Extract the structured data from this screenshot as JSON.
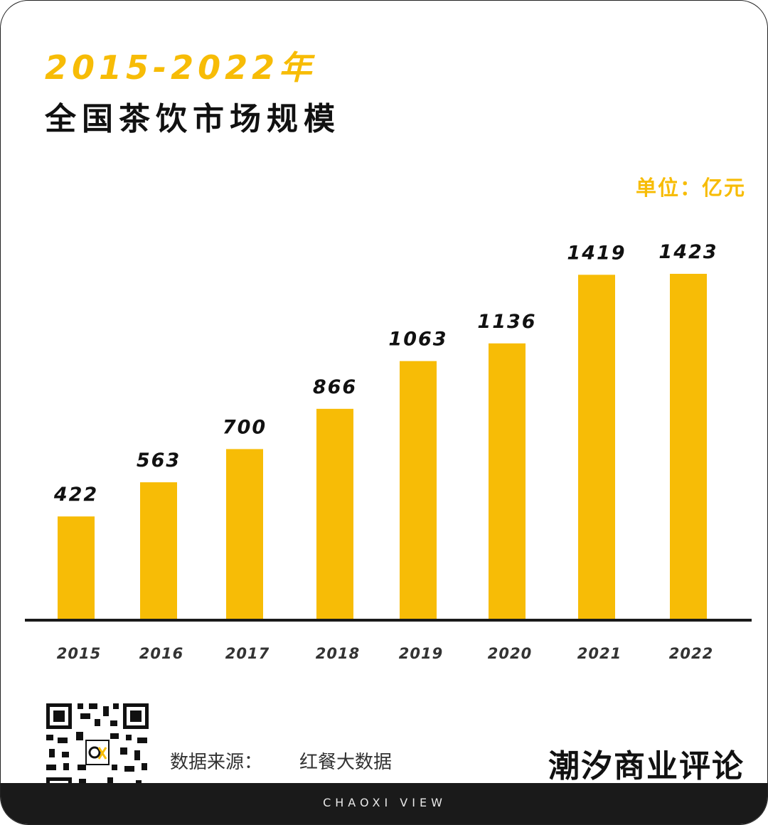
{
  "title": {
    "line1": "2015-2022年",
    "line2": "全国茶饮市场规模"
  },
  "unit_label": "单位：亿元",
  "colors": {
    "bar": "#f7bc06",
    "accent": "#f7bc06",
    "text": "#111111",
    "footer": "#1a1a1a"
  },
  "chart_data": {
    "type": "bar",
    "title": "2015-2022年 全国茶饮市场规模",
    "xlabel": "",
    "ylabel": "",
    "unit": "亿元",
    "categories": [
      "2015",
      "2016",
      "2017",
      "2018",
      "2019",
      "2020",
      "2021",
      "2022"
    ],
    "values": [
      422,
      563,
      700,
      866,
      1063,
      1136,
      1419,
      1423
    ],
    "ylim": [
      0,
      1423
    ],
    "grid": false,
    "legend": "none"
  },
  "footer": {
    "qr_icon": "qr-code-icon",
    "source_label": "数据来源：",
    "source_value": "红餐大数据",
    "brand": "潮汐商业评论",
    "tagline": "CHAOXI VIEW"
  }
}
